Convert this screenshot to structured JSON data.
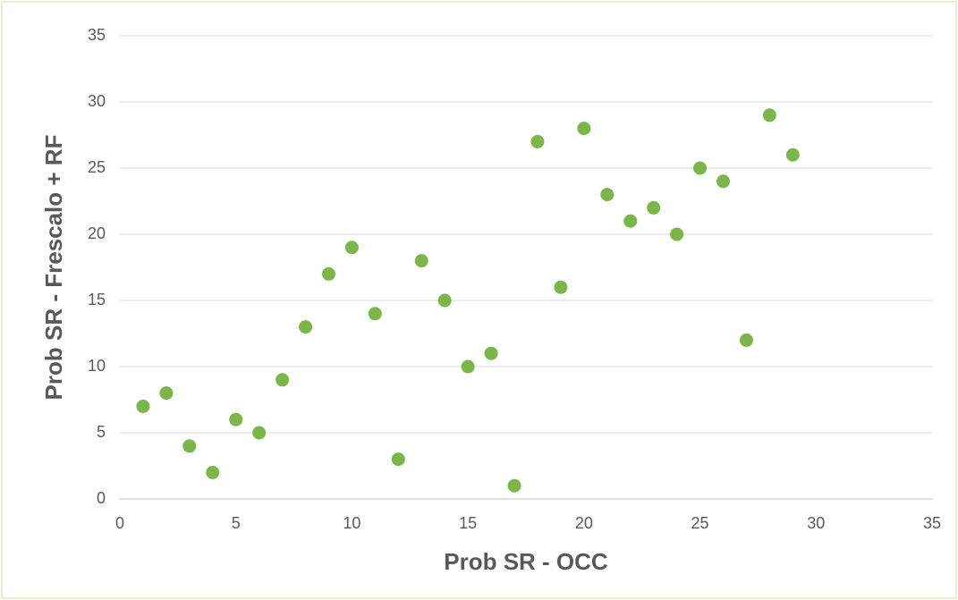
{
  "chart_data": {
    "type": "scatter",
    "x_label": "Prob SR - OCC",
    "y_label": "Prob SR - Frescalo + RF",
    "color": "#7ab648",
    "x": [
      1,
      2,
      3,
      4,
      5,
      6,
      7,
      8,
      9,
      10,
      11,
      12,
      13,
      14,
      15,
      16,
      17,
      18,
      19,
      20,
      21,
      22,
      23,
      24,
      25,
      26,
      27,
      28,
      29
    ],
    "values": [
      7,
      8,
      4,
      2,
      6,
      5,
      9,
      13,
      17,
      19,
      14,
      3,
      18,
      15,
      10,
      11,
      1,
      27,
      16,
      28,
      23,
      21,
      22,
      20,
      25,
      24,
      12,
      29,
      26
    ],
    "xlim": [
      0,
      35
    ],
    "xticks": [
      0,
      5,
      10,
      15,
      20,
      25,
      30,
      35
    ],
    "ylim": [
      0,
      35
    ],
    "yticks": [
      0,
      5,
      10,
      15,
      20,
      25,
      30,
      35
    ],
    "grid": true
  }
}
